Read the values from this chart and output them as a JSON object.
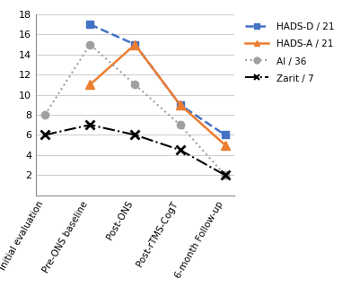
{
  "x_labels": [
    "Initial evaluation",
    "Pre-ONS baseline",
    "Post-ONS",
    "Post-rTMS-CogT",
    "6-month Follow-up"
  ],
  "series": [
    {
      "name": "HADS-D / 21",
      "values": [
        null,
        17,
        15,
        9,
        6
      ],
      "color": "#4472C4",
      "linestyle": "--",
      "marker": "s",
      "linewidth": 1.8
    },
    {
      "name": "HADS-A / 21",
      "values": [
        null,
        11,
        15,
        9,
        5
      ],
      "color": "#ED7D31",
      "linestyle": "-",
      "marker": "^",
      "linewidth": 1.8
    },
    {
      "name": "AI / 36",
      "values": [
        8,
        15,
        11,
        7,
        2
      ],
      "color": "#A0A0A0",
      "linestyle": ":",
      "marker": "o",
      "linewidth": 1.5
    },
    {
      "name": "Zarit / 7",
      "values": [
        6,
        7,
        6,
        4.5,
        2
      ],
      "color": "#000000",
      "linestyle": "-.",
      "marker": "x",
      "linewidth": 1.5
    }
  ],
  "ylim": [
    0,
    18
  ],
  "yticks": [
    2,
    4,
    6,
    8,
    10,
    12,
    14,
    16,
    18
  ],
  "background_color": "#ffffff"
}
